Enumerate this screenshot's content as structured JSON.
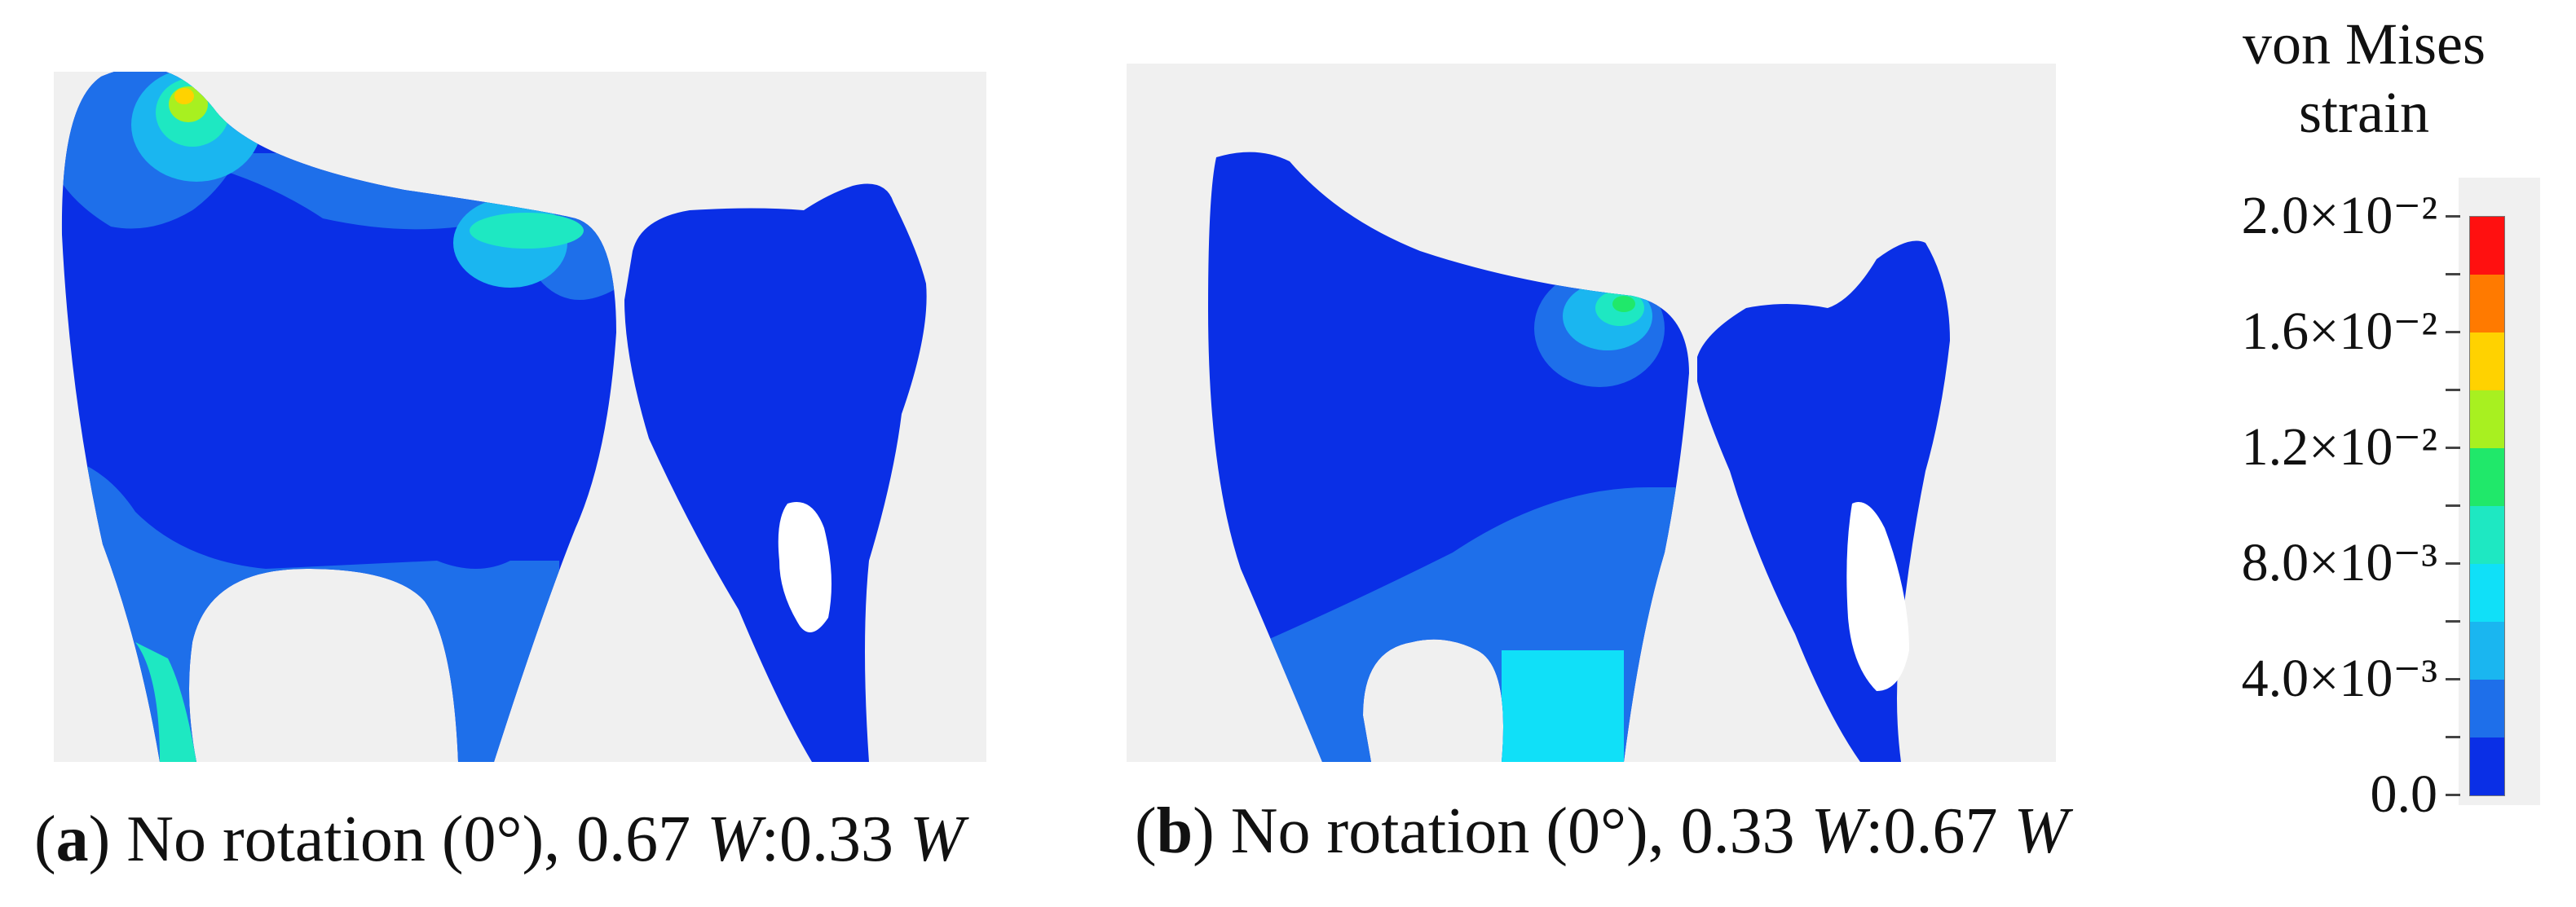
{
  "colors": {
    "background": "#f0f0f0",
    "base_blue": "#0a2fe6",
    "level_blue": "#1e6fea",
    "light_blue": "#1ab6f0",
    "cyan": "#10e0f8",
    "teal": "#1ee8c2",
    "green": "#20e86a",
    "yellow_green": "#a8f020",
    "yellow": "#ffd200",
    "orange": "#ff7a00",
    "red": "#ff1010"
  },
  "panels": [
    {
      "id": "a",
      "caption_label": "a",
      "caption_prefix": "(",
      "caption_close": ")",
      "caption_text": " No rotation (0°), ",
      "ratio_1": "0.67 ",
      "w_1": "W",
      "sep": ":0.33 ",
      "w_2": "W"
    },
    {
      "id": "b",
      "caption_label": "b",
      "caption_prefix": "(",
      "caption_close": ")",
      "caption_text": " No rotation (0°), ",
      "ratio_1": "0.33 ",
      "w_1": "W",
      "sep": ":0.67 ",
      "w_2": "W"
    }
  ],
  "legend": {
    "title_line1": "von Mises",
    "title_line2": "strain",
    "range": [
      0,
      0.02
    ],
    "segments": [
      "#ff1010",
      "#ff7a00",
      "#ffd200",
      "#a8f020",
      "#20e86a",
      "#1ee8c2",
      "#10e0f8",
      "#1ab6f0",
      "#1e6fea",
      "#0a2fe6"
    ],
    "tick_labels": [
      {
        "value": 0.02,
        "text": "2.0×10⁻²"
      },
      {
        "value": 0.016,
        "text": "1.6×10⁻²"
      },
      {
        "value": 0.012,
        "text": "1.2×10⁻²"
      },
      {
        "value": 0.008,
        "text": "8.0×10⁻³"
      },
      {
        "value": 0.004,
        "text": "4.0×10⁻³"
      },
      {
        "value": 0.0,
        "text": "0.0"
      }
    ],
    "tick_values": [
      0.02,
      0.018,
      0.016,
      0.014,
      0.012,
      0.01,
      0.008,
      0.006,
      0.004,
      0.002,
      0.0
    ]
  }
}
